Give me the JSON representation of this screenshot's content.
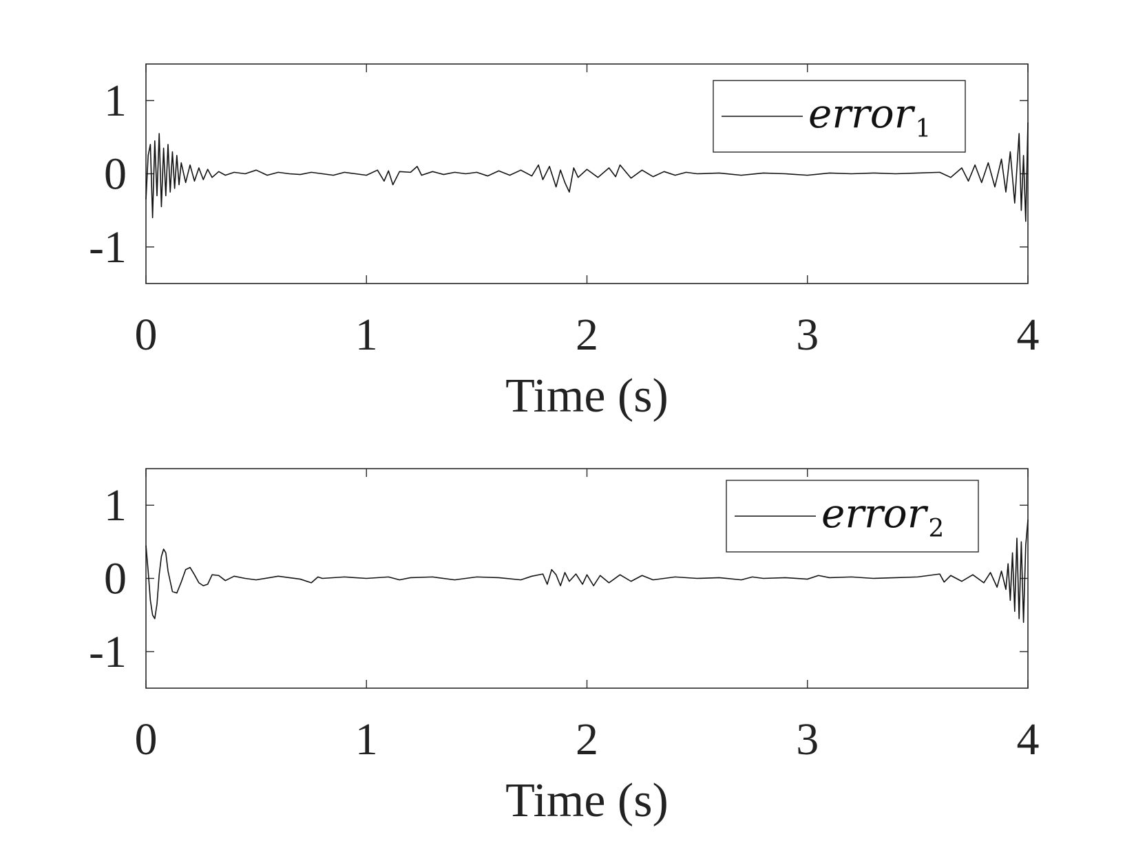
{
  "chart_data": [
    {
      "type": "line",
      "xlabel": "Time (s)",
      "ylabel": "",
      "xlim": [
        0,
        4
      ],
      "ylim": [
        -1.5,
        1.5
      ],
      "xticks": [
        0,
        1,
        2,
        3,
        4
      ],
      "xtick_labels": [
        "0",
        "1",
        "2",
        "3",
        "4"
      ],
      "yticks": [
        -1,
        0,
        1
      ],
      "ytick_labels": [
        "-1",
        "0",
        "1"
      ],
      "grid": false,
      "legend_position": "top-right",
      "series": [
        {
          "name": "error",
          "name_subscript": "1",
          "color": "#111111",
          "x": [
            0.0,
            0.01,
            0.02,
            0.03,
            0.04,
            0.05,
            0.06,
            0.07,
            0.08,
            0.09,
            0.1,
            0.11,
            0.12,
            0.13,
            0.14,
            0.15,
            0.16,
            0.18,
            0.2,
            0.22,
            0.24,
            0.26,
            0.28,
            0.3,
            0.33,
            0.36,
            0.4,
            0.45,
            0.5,
            0.55,
            0.6,
            0.65,
            0.7,
            0.75,
            0.8,
            0.85,
            0.9,
            0.95,
            1.0,
            1.05,
            1.08,
            1.1,
            1.12,
            1.15,
            1.2,
            1.23,
            1.25,
            1.3,
            1.35,
            1.4,
            1.45,
            1.5,
            1.55,
            1.6,
            1.65,
            1.7,
            1.75,
            1.78,
            1.8,
            1.83,
            1.86,
            1.88,
            1.9,
            1.92,
            1.94,
            1.96,
            2.0,
            2.05,
            2.1,
            2.13,
            2.15,
            2.2,
            2.25,
            2.3,
            2.35,
            2.4,
            2.45,
            2.5,
            2.6,
            2.7,
            2.8,
            2.9,
            3.0,
            3.1,
            3.2,
            3.3,
            3.4,
            3.5,
            3.6,
            3.65,
            3.7,
            3.73,
            3.76,
            3.79,
            3.82,
            3.85,
            3.88,
            3.9,
            3.92,
            3.94,
            3.96,
            3.97,
            3.98,
            3.99,
            4.0
          ],
          "y": [
            -0.35,
            0.25,
            0.4,
            -0.6,
            0.45,
            -0.3,
            0.55,
            -0.45,
            0.35,
            -0.3,
            0.4,
            -0.25,
            0.3,
            -0.2,
            0.25,
            -0.15,
            0.15,
            -0.12,
            0.12,
            -0.1,
            0.08,
            -0.08,
            0.06,
            -0.05,
            0.03,
            -0.02,
            0.02,
            0.0,
            0.05,
            -0.02,
            0.02,
            0.0,
            -0.01,
            0.02,
            0.0,
            -0.02,
            0.02,
            0.0,
            -0.02,
            0.05,
            -0.1,
            0.04,
            -0.15,
            0.03,
            0.02,
            0.1,
            -0.02,
            0.03,
            -0.01,
            0.02,
            0.0,
            0.02,
            -0.03,
            0.04,
            -0.02,
            0.05,
            -0.03,
            0.12,
            -0.08,
            0.1,
            -0.18,
            0.05,
            -0.12,
            -0.25,
            0.08,
            -0.05,
            0.06,
            -0.05,
            0.08,
            -0.04,
            0.12,
            -0.06,
            0.05,
            -0.04,
            0.03,
            -0.02,
            0.02,
            0.0,
            0.01,
            -0.02,
            0.01,
            0.0,
            -0.02,
            0.01,
            0.0,
            0.01,
            0.0,
            0.01,
            0.02,
            -0.05,
            0.08,
            -0.1,
            0.12,
            -0.12,
            0.15,
            -0.18,
            0.2,
            -0.25,
            0.3,
            -0.4,
            0.55,
            -0.5,
            0.25,
            -0.65,
            0.7
          ]
        }
      ]
    },
    {
      "type": "line",
      "xlabel": "Time (s)",
      "ylabel": "",
      "xlim": [
        0,
        4
      ],
      "ylim": [
        -1.5,
        1.5
      ],
      "xticks": [
        0,
        1,
        2,
        3,
        4
      ],
      "xtick_labels": [
        "0",
        "1",
        "2",
        "3",
        "4"
      ],
      "yticks": [
        -1,
        0,
        1
      ],
      "ytick_labels": [
        "-1",
        "0",
        "1"
      ],
      "grid": false,
      "legend_position": "top-right",
      "series": [
        {
          "name": "error",
          "name_subscript": "2",
          "color": "#111111",
          "x": [
            0.0,
            0.01,
            0.02,
            0.03,
            0.04,
            0.05,
            0.06,
            0.07,
            0.08,
            0.09,
            0.1,
            0.12,
            0.14,
            0.16,
            0.18,
            0.2,
            0.22,
            0.24,
            0.26,
            0.28,
            0.3,
            0.33,
            0.36,
            0.4,
            0.45,
            0.5,
            0.6,
            0.7,
            0.75,
            0.78,
            0.8,
            0.9,
            1.0,
            1.1,
            1.15,
            1.2,
            1.3,
            1.4,
            1.5,
            1.6,
            1.7,
            1.75,
            1.8,
            1.82,
            1.84,
            1.86,
            1.88,
            1.9,
            1.92,
            1.95,
            1.98,
            2.0,
            2.03,
            2.06,
            2.1,
            2.15,
            2.2,
            2.25,
            2.3,
            2.4,
            2.5,
            2.6,
            2.7,
            2.75,
            2.8,
            2.9,
            3.0,
            3.05,
            3.1,
            3.2,
            3.3,
            3.4,
            3.5,
            3.6,
            3.62,
            3.65,
            3.7,
            3.75,
            3.8,
            3.83,
            3.86,
            3.88,
            3.9,
            3.91,
            3.92,
            3.93,
            3.94,
            3.95,
            3.96,
            3.97,
            3.98,
            3.99,
            4.0
          ],
          "y": [
            0.45,
            0.1,
            -0.3,
            -0.5,
            -0.55,
            -0.35,
            0.05,
            0.3,
            0.4,
            0.35,
            0.1,
            -0.18,
            -0.2,
            -0.05,
            0.12,
            0.15,
            0.05,
            -0.06,
            -0.1,
            -0.08,
            0.05,
            0.04,
            -0.03,
            0.03,
            0.0,
            -0.02,
            0.03,
            -0.01,
            -0.06,
            0.02,
            0.0,
            0.02,
            0.0,
            0.02,
            -0.02,
            0.01,
            0.02,
            -0.02,
            0.02,
            0.01,
            -0.02,
            0.03,
            0.06,
            -0.08,
            0.12,
            0.05,
            -0.1,
            0.08,
            -0.04,
            0.06,
            -0.08,
            0.05,
            -0.1,
            0.04,
            -0.06,
            0.05,
            -0.04,
            0.04,
            -0.02,
            0.02,
            0.0,
            0.01,
            -0.02,
            0.02,
            0.0,
            0.01,
            -0.01,
            0.04,
            0.01,
            0.02,
            0.0,
            0.01,
            0.02,
            0.06,
            -0.05,
            0.04,
            -0.04,
            0.05,
            -0.06,
            0.08,
            -0.12,
            0.1,
            -0.15,
            0.2,
            -0.3,
            0.35,
            -0.45,
            0.55,
            -0.55,
            0.5,
            -0.6,
            0.45,
            0.8
          ]
        }
      ]
    }
  ]
}
